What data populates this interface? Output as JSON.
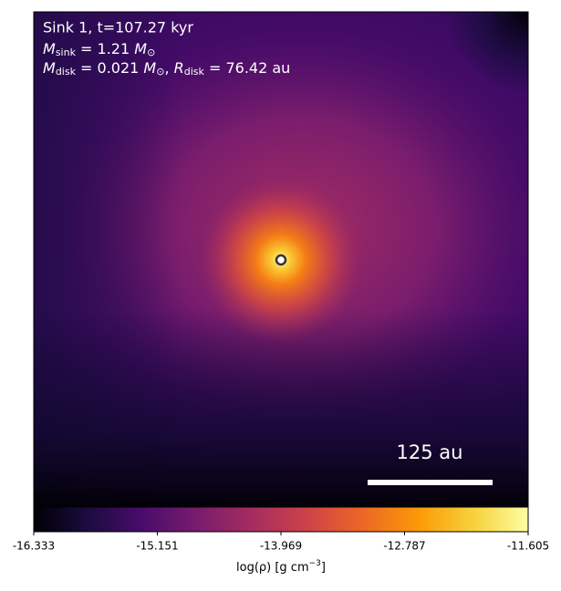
{
  "chart_data": {
    "type": "density-map",
    "header": "Sink 1, t=107.27 kyr",
    "sink_mass": {
      "symbol": "M",
      "sub": "sink",
      "text": " = 1.21 ",
      "unit": "M",
      "unit_sub": "⊙"
    },
    "disk": {
      "symbol": "M",
      "sub": "disk",
      "text": " = 0.021 ",
      "unit": "M",
      "unit_sub": "⊙",
      "sep": ", ",
      "r_symbol": "R",
      "r_sub": "disk",
      "r_text": " = 76.42 au"
    },
    "scale_bar_label": "125 au",
    "colorbar": {
      "label": {
        "before": "log(ρ) [g cm",
        "sup": "−3",
        "after": "]"
      },
      "xlim": [
        -16.333,
        -11.605
      ],
      "xticks": [
        -16.333,
        -15.151,
        -13.969,
        -12.787,
        -11.605
      ]
    }
  }
}
